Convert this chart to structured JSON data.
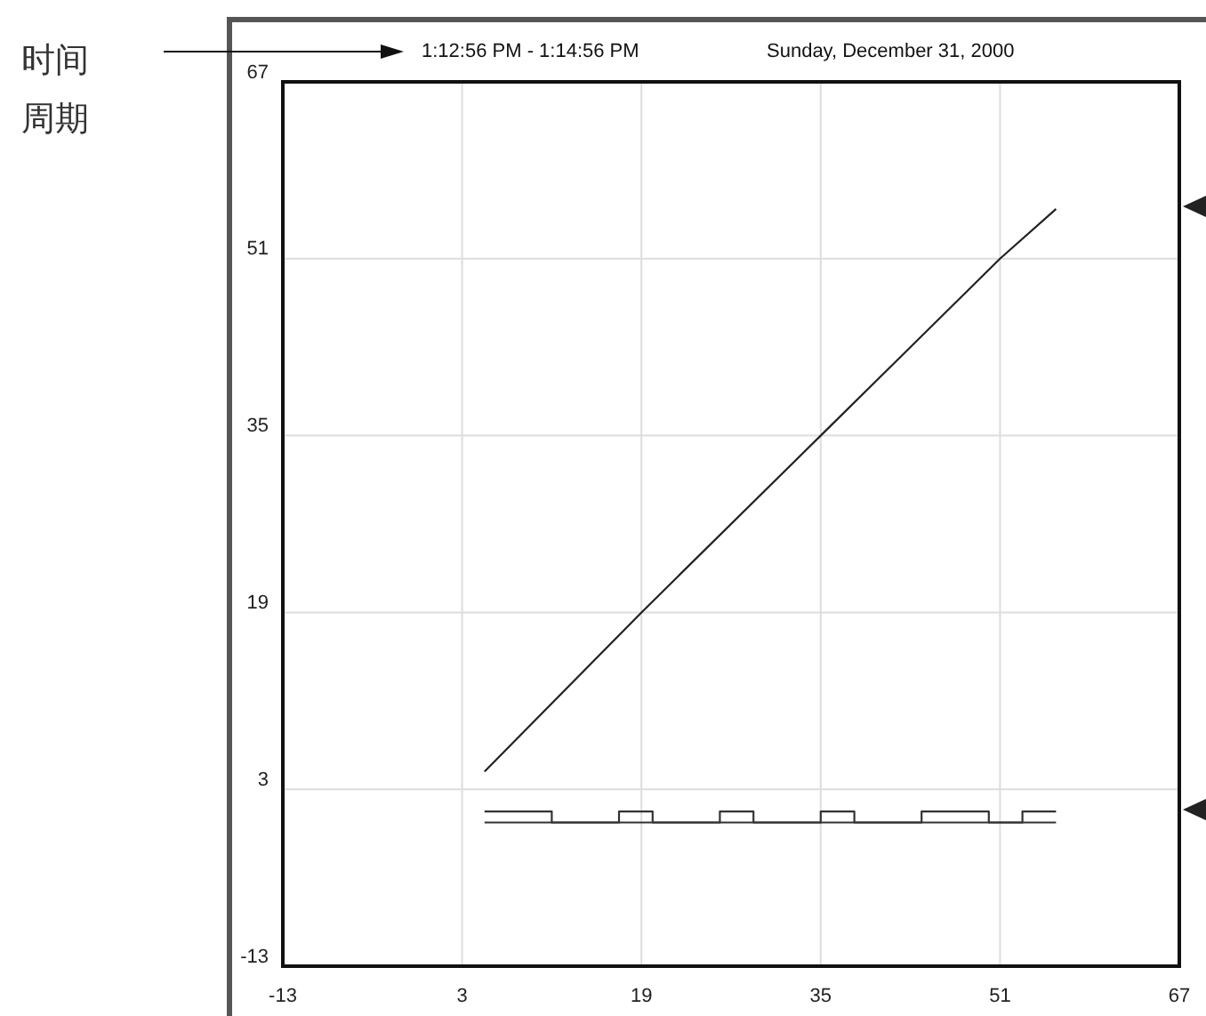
{
  "chart_data": {
    "type": "line",
    "title": "1:12:56 PM - 1:14:56 PM",
    "subtitle": "Sunday, December 31, 2000",
    "annotations": [
      "时间",
      "周期"
    ],
    "xlim": [
      -13,
      67
    ],
    "ylim": [
      -13,
      67
    ],
    "xticks": [
      -13,
      3,
      19,
      35,
      51,
      67
    ],
    "yticks": [
      -13,
      3,
      19,
      35,
      51,
      67
    ],
    "grid": true,
    "marker": "none",
    "line_style": "solid",
    "series": [
      {
        "color": "#222222",
        "x": [
          5,
          19,
          35,
          51,
          56
        ],
        "values": [
          4.6,
          19,
          35,
          51,
          55.5
        ]
      },
      {
        "color": "#333333",
        "x": [
          5,
          56
        ],
        "values": [
          0,
          0
        ]
      },
      {
        "type": "step",
        "color": "#333333",
        "x": [
          5,
          11,
          17,
          20,
          26,
          29,
          35,
          38,
          44,
          50,
          53,
          56
        ],
        "values": [
          1,
          0,
          1,
          0,
          1,
          0,
          1,
          0,
          1,
          0,
          1,
          1
        ]
      }
    ]
  }
}
